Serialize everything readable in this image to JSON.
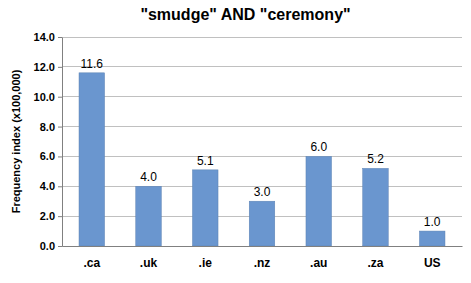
{
  "chart_data": {
    "type": "bar",
    "title": "\"smudge\" AND \"ceremony\"",
    "y_label": "Frequency index (x100,000)",
    "categories": [
      ".ca",
      ".uk",
      ".ie",
      ".nz",
      ".au",
      ".za",
      "US"
    ],
    "values": [
      11.6,
      4.0,
      5.1,
      3.0,
      6.0,
      5.2,
      1.0
    ],
    "value_labels": [
      "11.6",
      "4.0",
      "5.1",
      "3.0",
      "6.0",
      "5.2",
      "1.0"
    ],
    "color": "#6a96cf",
    "ylim": [
      0,
      14
    ],
    "yticks": [
      {
        "value": 0,
        "label": "0.0"
      },
      {
        "value": 2,
        "label": "2.0"
      },
      {
        "value": 4,
        "label": "4.0"
      },
      {
        "value": 6,
        "label": "6.0"
      },
      {
        "value": 8,
        "label": "8.0"
      },
      {
        "value": 10,
        "label": "10.0"
      },
      {
        "value": 12,
        "label": "12.0"
      },
      {
        "value": 14,
        "label": "14.0"
      }
    ],
    "grid": true,
    "data_labels": true
  }
}
